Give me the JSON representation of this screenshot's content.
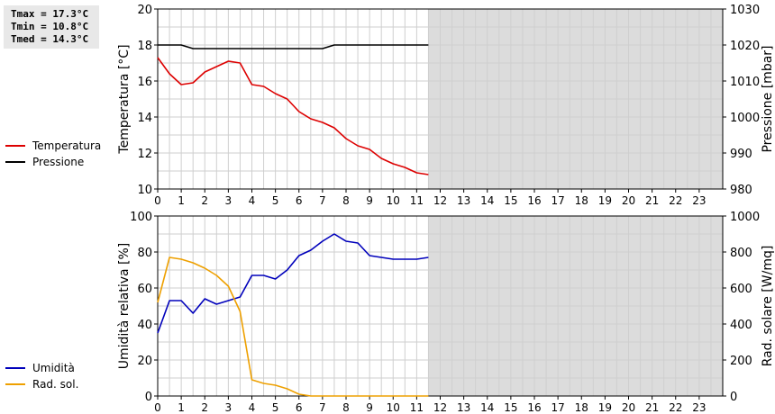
{
  "stats": {
    "tmax": "Tmax = 17.3°C",
    "tmin": "Tmin = 10.8°C",
    "tmed": "Tmed = 14.3°C"
  },
  "colors": {
    "temperatura": "#dd0000",
    "pressione": "#000000",
    "umidita": "#0000bb",
    "rad_sol": "#eea000",
    "future_fill": "#dcdcdc",
    "grid": "#cfcfcf"
  },
  "legend_top": [
    {
      "label": "Temperatura",
      "color": "#dd0000"
    },
    {
      "label": "Pressione",
      "color": "#000000"
    }
  ],
  "legend_bottom": [
    {
      "label": "Umidità",
      "color": "#0000bb"
    },
    {
      "label": "Rad. sol.",
      "color": "#eea000"
    }
  ],
  "chart_data": [
    {
      "type": "line",
      "xlim": [
        0,
        24
      ],
      "xticks": [
        0,
        1,
        2,
        3,
        4,
        5,
        6,
        7,
        8,
        9,
        10,
        11,
        12,
        13,
        14,
        15,
        16,
        17,
        18,
        19,
        20,
        21,
        22,
        23
      ],
      "shaded_from": 11.5,
      "ylabel": "Temperatura [°C]",
      "ylim": [
        10,
        20
      ],
      "yticks": [
        10,
        12,
        14,
        16,
        18,
        20
      ],
      "y2label": "Pressione [mbar]",
      "y2lim": [
        980,
        1030
      ],
      "y2ticks": [
        980,
        990,
        1000,
        1010,
        1020,
        1030
      ],
      "grid": true,
      "series": [
        {
          "name": "Temperatura",
          "axis": "left",
          "x": [
            0,
            0.5,
            1,
            1.5,
            2,
            2.5,
            3,
            3.5,
            4,
            4.5,
            5,
            5.5,
            6,
            6.5,
            7,
            7.5,
            8,
            8.5,
            9,
            9.5,
            10,
            10.5,
            11,
            11.5
          ],
          "y": [
            17.3,
            16.4,
            15.8,
            15.9,
            16.5,
            16.8,
            17.1,
            17.0,
            15.8,
            15.7,
            15.3,
            15.0,
            14.3,
            13.9,
            13.7,
            13.4,
            12.8,
            12.4,
            12.2,
            11.7,
            11.4,
            11.2,
            10.9,
            10.8
          ]
        },
        {
          "name": "Pressione",
          "axis": "right",
          "x": [
            0,
            1,
            1.5,
            7,
            7.5,
            11.5
          ],
          "y": [
            1020,
            1020,
            1019,
            1019,
            1020,
            1020
          ]
        }
      ]
    },
    {
      "type": "line",
      "xlim": [
        0,
        24
      ],
      "xticks": [
        0,
        1,
        2,
        3,
        4,
        5,
        6,
        7,
        8,
        9,
        10,
        11,
        12,
        13,
        14,
        15,
        16,
        17,
        18,
        19,
        20,
        21,
        22,
        23
      ],
      "shaded_from": 11.5,
      "ylabel": "Umidità relativa [%]",
      "ylim": [
        0,
        100
      ],
      "yticks": [
        0,
        20,
        40,
        60,
        80,
        100
      ],
      "y2label": "Rad. solare [W/mq]",
      "y2lim": [
        0,
        1000
      ],
      "y2ticks": [
        0,
        200,
        400,
        600,
        800,
        1000
      ],
      "grid": true,
      "series": [
        {
          "name": "Umidità",
          "axis": "left",
          "x": [
            0,
            0.5,
            1,
            1.5,
            2,
            2.5,
            3,
            3.5,
            4,
            4.5,
            5,
            5.5,
            6,
            6.5,
            7,
            7.5,
            8,
            8.5,
            9,
            9.5,
            10,
            10.5,
            11,
            11.5
          ],
          "y": [
            35,
            53,
            53,
            46,
            54,
            51,
            53,
            55,
            67,
            67,
            65,
            70,
            78,
            81,
            86,
            90,
            86,
            85,
            78,
            77,
            76,
            76,
            76,
            77
          ]
        },
        {
          "name": "Rad. sol.",
          "axis": "right",
          "x": [
            0,
            0.5,
            1,
            1.5,
            2,
            2.5,
            3,
            3.5,
            4,
            4.5,
            5,
            5.5,
            6,
            6.5,
            7,
            7.5,
            8,
            8.5,
            9,
            9.5,
            10,
            10.5,
            11,
            11.5
          ],
          "y": [
            520,
            770,
            760,
            740,
            710,
            670,
            610,
            470,
            90,
            70,
            60,
            40,
            10,
            0,
            0,
            0,
            0,
            0,
            0,
            0,
            0,
            0,
            0,
            0
          ]
        }
      ]
    }
  ]
}
